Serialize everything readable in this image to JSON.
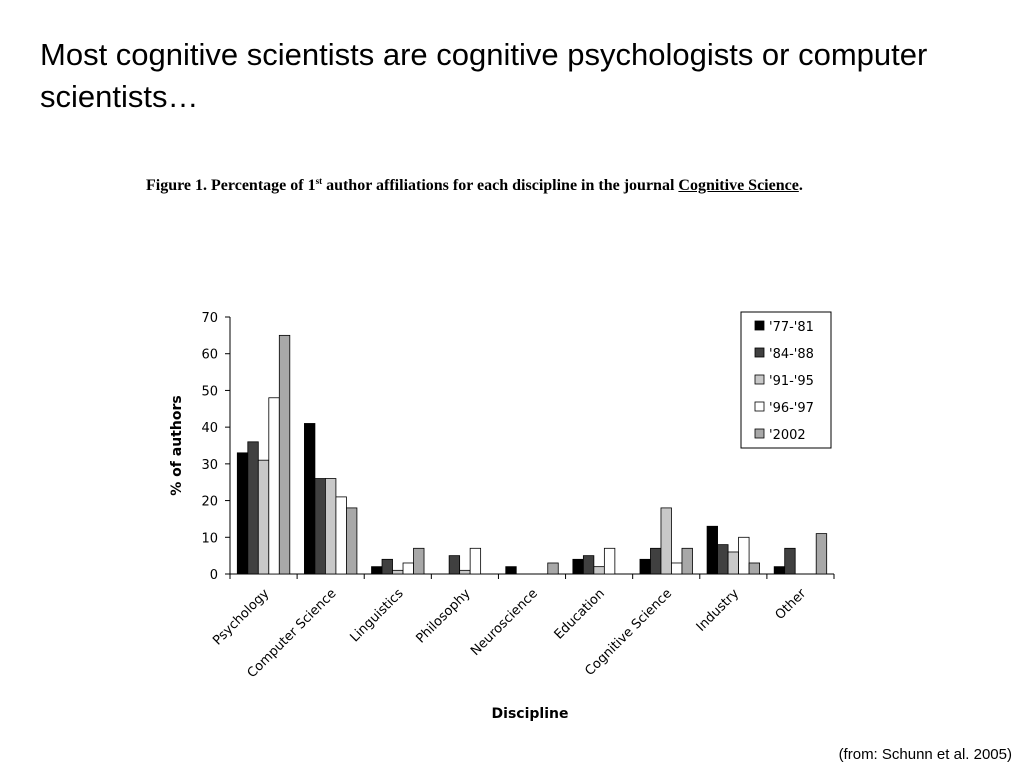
{
  "slide": {
    "title": "Most cognitive scientists are cognitive psychologists or computer scientists…",
    "source": "(from: Schunn et al. 2005)"
  },
  "figure": {
    "caption_lead": "Figure 1. Percentage of 1",
    "caption_sup": "st",
    "caption_mid": " author affiliations for each discipline in the journal ",
    "caption_journal": "Cognitive Science",
    "caption_end": "."
  },
  "chart_data": {
    "type": "bar",
    "title": "",
    "xlabel": "Discipline",
    "ylabel": "% of authors",
    "ylim": [
      0,
      70
    ],
    "yticks": [
      0,
      10,
      20,
      30,
      40,
      50,
      60,
      70
    ],
    "grid": false,
    "legend_position": "top-right",
    "categories": [
      "Psychology",
      "Computer Science",
      "Linguistics",
      "Philosophy",
      "Neuroscience",
      "Education",
      "Cognitive Science",
      "Industry",
      "Other"
    ],
    "series": [
      {
        "name": "'77-'81",
        "color": "#000000",
        "values": [
          33,
          41,
          2,
          0,
          2,
          4,
          4,
          13,
          2
        ]
      },
      {
        "name": "'84-'88",
        "color": "#404040",
        "values": [
          36,
          26,
          4,
          5,
          0,
          5,
          7,
          8,
          7
        ]
      },
      {
        "name": "'91-'95",
        "color": "#c8c8c8",
        "values": [
          31,
          26,
          1,
          1,
          0,
          2,
          18,
          6,
          0
        ]
      },
      {
        "name": "'96-'97",
        "color": "#ffffff",
        "values": [
          48,
          21,
          3,
          7,
          0,
          7,
          3,
          10,
          0
        ]
      },
      {
        "name": "'2002",
        "color": "#a8a8a8",
        "values": [
          65,
          18,
          7,
          0,
          3,
          0,
          7,
          3,
          11
        ]
      }
    ]
  }
}
